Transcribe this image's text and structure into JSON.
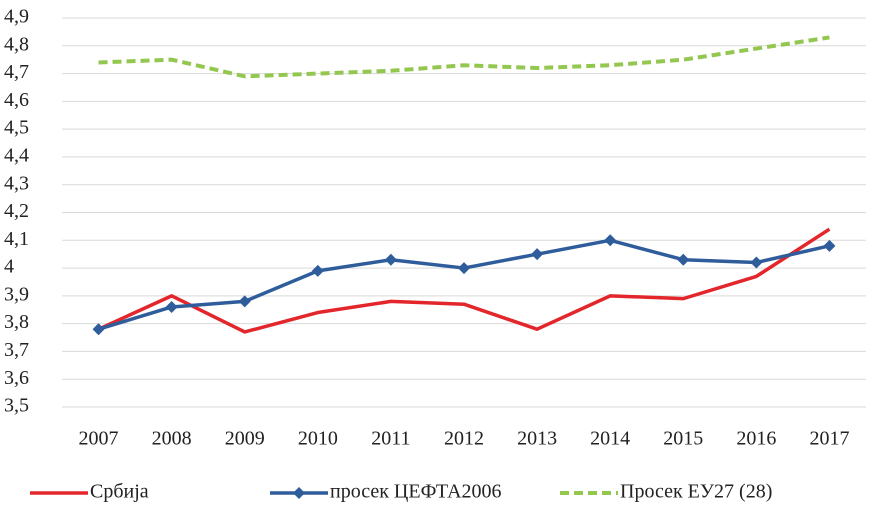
{
  "chart_data": {
    "type": "line",
    "x": [
      "2007",
      "2008",
      "2009",
      "2010",
      "2011",
      "2012",
      "2013",
      "2014",
      "2015",
      "2016",
      "2017"
    ],
    "series": [
      {
        "name": "Србија",
        "color": "#e3262b",
        "marker": "none",
        "dash": "solid",
        "values": [
          3.78,
          3.9,
          3.77,
          3.84,
          3.88,
          3.87,
          3.78,
          3.9,
          3.89,
          3.97,
          4.14
        ]
      },
      {
        "name": "просек ЦЕФТА2006",
        "color": "#2f5d9b",
        "marker": "diamond",
        "dash": "solid",
        "values": [
          3.78,
          3.86,
          3.88,
          3.99,
          4.03,
          4.0,
          4.05,
          4.1,
          4.03,
          4.02,
          4.08
        ]
      },
      {
        "name": "Просек  ЕУ27 (28)",
        "color": "#93c74f",
        "marker": "none",
        "dash": "dashed",
        "values": [
          4.74,
          4.75,
          4.69,
          4.7,
          4.71,
          4.73,
          4.72,
          4.73,
          4.75,
          4.79,
          4.83
        ]
      }
    ],
    "ylim": [
      3.5,
      4.9
    ],
    "yticks": [
      {
        "value": 3.5,
        "label": "3,5"
      },
      {
        "value": 3.6,
        "label": "3,6"
      },
      {
        "value": 3.7,
        "label": "3,7"
      },
      {
        "value": 3.8,
        "label": "3,8"
      },
      {
        "value": 3.9,
        "label": "3,9"
      },
      4,
      {
        "value": 4.1,
        "label": "4,1"
      },
      {
        "value": 4.2,
        "label": "4,2"
      },
      {
        "value": 4.3,
        "label": "4,3"
      },
      {
        "value": 4.4,
        "label": "4,4"
      },
      {
        "value": 4.5,
        "label": "4,5"
      },
      {
        "value": 4.6,
        "label": "4,6"
      },
      {
        "value": 4.7,
        "label": "4,7"
      },
      {
        "value": 4.8,
        "label": "4,8"
      },
      {
        "value": 4.9,
        "label": "4,9"
      }
    ],
    "grid": true,
    "legend": "bottom"
  }
}
